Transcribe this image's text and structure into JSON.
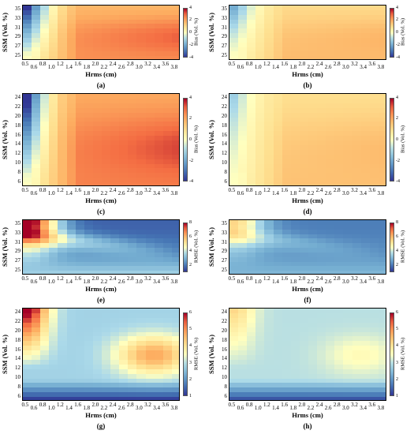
{
  "chart_data": [
    {
      "id": "a",
      "type": "heatmap",
      "caption": "(a)",
      "metric": "Bias",
      "xlabel": "Hrms (cm)",
      "ylabel": "SSM (Vol. %)",
      "colorbar_label": "Bias (Vol. %)",
      "x_ticks": [
        "0.5",
        "0.6",
        "0.8",
        "1.0",
        "1.2",
        "1.4",
        "1.6",
        "1.8",
        "2.0",
        "2.2",
        "2.4",
        "2.6",
        "2.8",
        "3.0",
        "3.2",
        "3.4",
        "3.6",
        "3.8"
      ],
      "y_ticks": [
        "35",
        "33",
        "31",
        "29",
        "27",
        "25"
      ],
      "colorbar_ticks": [
        "4",
        "2",
        "0",
        "-2",
        "-4"
      ],
      "vrange": [
        -4,
        4
      ],
      "rows": 12,
      "cols": 18,
      "pattern": {
        "base": 3.0,
        "low_x_low": -4.0,
        "fade_start": 0.3,
        "gradient": "strong"
      }
    },
    {
      "id": "b",
      "type": "heatmap",
      "caption": "(b)",
      "metric": "Bias",
      "xlabel": "Hrms (cm)",
      "ylabel": "SSM (Vol. %)",
      "colorbar_label": "Bias (Vol. %)",
      "x_ticks": [
        "0.5",
        "0.6",
        "0.8",
        "1.0",
        "1.2",
        "1.4",
        "1.6",
        "1.8",
        "2.0",
        "2.2",
        "2.4",
        "2.6",
        "2.8",
        "3.0",
        "3.2",
        "3.4",
        "3.6",
        "3.8"
      ],
      "y_ticks": [
        "35",
        "33",
        "31",
        "29",
        "27",
        "25"
      ],
      "colorbar_ticks": [
        "4",
        "2",
        "0",
        "-2",
        "-4"
      ],
      "vrange": [
        -4,
        4
      ],
      "rows": 12,
      "cols": 18,
      "pattern": {
        "base": 1.8,
        "low_x_low": -2.0,
        "fade_start": 0.3,
        "gradient": "mild"
      }
    },
    {
      "id": "c",
      "type": "heatmap",
      "caption": "(c)",
      "metric": "Bias",
      "xlabel": "Hrms (cm)",
      "ylabel": "SSM (Vol. %)",
      "colorbar_label": "Bias (Vol. %)",
      "x_ticks": [
        "0.5",
        "0.6",
        "0.8",
        "1.0",
        "1.2",
        "1.4",
        "1.6",
        "1.8",
        "2.0",
        "2.2",
        "2.4",
        "2.6",
        "2.8",
        "3.0",
        "3.2",
        "3.4",
        "3.6",
        "3.8"
      ],
      "y_ticks": [
        "24",
        "22",
        "20",
        "18",
        "16",
        "14",
        "12",
        "10",
        "8",
        "6"
      ],
      "colorbar_ticks": [
        "4",
        "2",
        "0",
        "-2",
        "-4"
      ],
      "vrange": [
        -4,
        4
      ],
      "rows": 20,
      "cols": 18,
      "pattern": {
        "base": 3.4,
        "low_x_low": -4.5,
        "fade_start": 0.25,
        "gradient": "strong"
      }
    },
    {
      "id": "d",
      "type": "heatmap",
      "caption": "(d)",
      "metric": "Bias",
      "xlabel": "Hrms (cm)",
      "ylabel": "SSM (Vol. %)",
      "colorbar_label": "Bias (Vol. %)",
      "x_ticks": [
        "0.5",
        "0.6",
        "0.8",
        "1.0",
        "1.2",
        "1.4",
        "1.6",
        "1.8",
        "2.0",
        "2.2",
        "2.4",
        "2.6",
        "2.8",
        "3.0",
        "3.2",
        "3.4",
        "3.6",
        "3.8"
      ],
      "y_ticks": [
        "24",
        "22",
        "20",
        "18",
        "16",
        "14",
        "12",
        "10",
        "8",
        "6"
      ],
      "colorbar_ticks": [
        "4",
        "2",
        "0",
        "-2",
        "-4"
      ],
      "vrange": [
        -4,
        4
      ],
      "rows": 20,
      "cols": 18,
      "pattern": {
        "base": 1.6,
        "low_x_low": -1.2,
        "fade_start": 0.25,
        "gradient": "mild"
      }
    },
    {
      "id": "e",
      "type": "heatmap",
      "caption": "(e)",
      "metric": "RMSE",
      "xlabel": "Hrms (cm)",
      "ylabel": "SSM (Vol. %)",
      "colorbar_label": "RMSE (Vol. %)",
      "x_ticks": [
        "0.5",
        "0.6",
        "0.8",
        "1.0",
        "1.2",
        "1.4",
        "1.6",
        "1.8",
        "2.0",
        "2.2",
        "2.4",
        "2.6",
        "2.8",
        "3.0",
        "3.2",
        "3.4",
        "3.6",
        "3.8"
      ],
      "y_ticks": [
        "35",
        "33",
        "31",
        "29",
        "27",
        "25"
      ],
      "colorbar_ticks": [
        "8",
        "6",
        "4",
        "2"
      ],
      "vrange": [
        1,
        8
      ],
      "rows": 12,
      "cols": 18,
      "pattern": {
        "kind": "rmse_wet",
        "peak": 8.5,
        "low": 1.6
      }
    },
    {
      "id": "f",
      "type": "heatmap",
      "caption": "(f)",
      "metric": "RMSE",
      "xlabel": "Hrms (cm)",
      "ylabel": "SSM (Vol. %)",
      "colorbar_label": "RMSE (Vol. %)",
      "x_ticks": [
        "0.5",
        "0.6",
        "0.8",
        "1.0",
        "1.2",
        "1.4",
        "1.6",
        "1.8",
        "2.0",
        "2.2",
        "2.4",
        "2.6",
        "2.8",
        "3.0",
        "3.2",
        "3.4",
        "3.6",
        "3.8"
      ],
      "y_ticks": [
        "35",
        "33",
        "31",
        "29",
        "27",
        "25"
      ],
      "colorbar_ticks": [
        "8",
        "6",
        "4",
        "2"
      ],
      "vrange": [
        1,
        8
      ],
      "rows": 12,
      "cols": 18,
      "pattern": {
        "kind": "rmse_wet",
        "peak": 5.5,
        "low": 2.0
      }
    },
    {
      "id": "g",
      "type": "heatmap",
      "caption": "(g)",
      "metric": "RMSE",
      "xlabel": "Hrms (cm)",
      "ylabel": "SSM (Vol. %)",
      "colorbar_label": "RMSE (Vol. %)",
      "x_ticks": [
        "0.5",
        "0.6",
        "0.8",
        "1.0",
        "1.2",
        "1.4",
        "1.6",
        "1.8",
        "2.0",
        "2.2",
        "2.4",
        "2.6",
        "2.8",
        "3.0",
        "3.2",
        "3.4",
        "3.6",
        "3.8"
      ],
      "y_ticks": [
        "24",
        "22",
        "20",
        "18",
        "16",
        "14",
        "12",
        "10",
        "8",
        "6"
      ],
      "colorbar_ticks": [
        "6",
        "5",
        "4",
        "3",
        "2",
        "1"
      ],
      "vrange": [
        1,
        6
      ],
      "rows": 20,
      "cols": 18,
      "pattern": {
        "kind": "rmse_dry",
        "peak": 6.2,
        "hump": 4.8,
        "low": 1.0
      }
    },
    {
      "id": "h",
      "type": "heatmap",
      "caption": "(h)",
      "metric": "RMSE",
      "xlabel": "Hrms (cm)",
      "ylabel": "SSM (Vol. %)",
      "colorbar_label": "RMSE (Vol. %)",
      "x_ticks": [
        "0.5",
        "0.6",
        "0.8",
        "1.0",
        "1.2",
        "1.4",
        "1.6",
        "1.8",
        "2.0",
        "2.2",
        "2.4",
        "2.6",
        "2.8",
        "3.0",
        "3.2",
        "3.4",
        "3.6",
        "3.8"
      ],
      "y_ticks": [
        "24",
        "22",
        "20",
        "18",
        "16",
        "14",
        "12",
        "10",
        "8",
        "6"
      ],
      "colorbar_ticks": [
        "6",
        "5",
        "4",
        "3",
        "2",
        "1"
      ],
      "vrange": [
        1,
        6
      ],
      "rows": 20,
      "cols": 18,
      "pattern": {
        "kind": "rmse_dry",
        "peak": 4.2,
        "hump": 3.6,
        "low": 1.2
      }
    }
  ]
}
